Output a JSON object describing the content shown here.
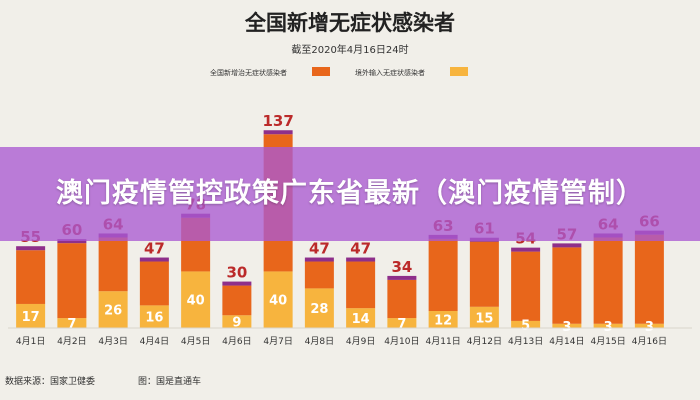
{
  "banner": {
    "title": "澳门疫情管控政策广东省最新（澳门疫情管制）"
  },
  "colors": {
    "local": "#e8661b",
    "imported": "#f7b43e",
    "total_label": "#bb2a2a",
    "background": "#f1efe9"
  },
  "chart_data": {
    "type": "bar",
    "stacked": true,
    "title": "全国新增无症状感染者",
    "subtitle": "截至2020年4月16日24时",
    "categories": [
      "4月1日",
      "4月2日",
      "4月3日",
      "4月4日",
      "4月5日",
      "4月6日",
      "4月7日",
      "4月8日",
      "4月9日",
      "4月10日",
      "4月11日",
      "4月12日",
      "4月13日",
      "4月14日",
      "4月15日",
      "4月16日"
    ],
    "series": [
      {
        "name": "全国新增治无症状感染者",
        "color": "#e8661b",
        "values": [
          38,
          53,
          38,
          31,
          38,
          21,
          97,
          19,
          33,
          27,
          51,
          46,
          49,
          54,
          61,
          63
        ]
      },
      {
        "name": "境外输入无症状感染者",
        "color": "#f7b43e",
        "values": [
          17,
          7,
          26,
          16,
          40,
          9,
          40,
          28,
          14,
          7,
          12,
          15,
          5,
          3,
          3,
          3
        ]
      }
    ],
    "totals": [
      55,
      60,
      64,
      47,
      78,
      30,
      137,
      47,
      47,
      34,
      63,
      61,
      54,
      57,
      64,
      66
    ],
    "ylim": [
      0,
      140
    ],
    "legend_position": "top",
    "source": "数据来源：国家卫健委",
    "credit": "图：国是直通车"
  }
}
